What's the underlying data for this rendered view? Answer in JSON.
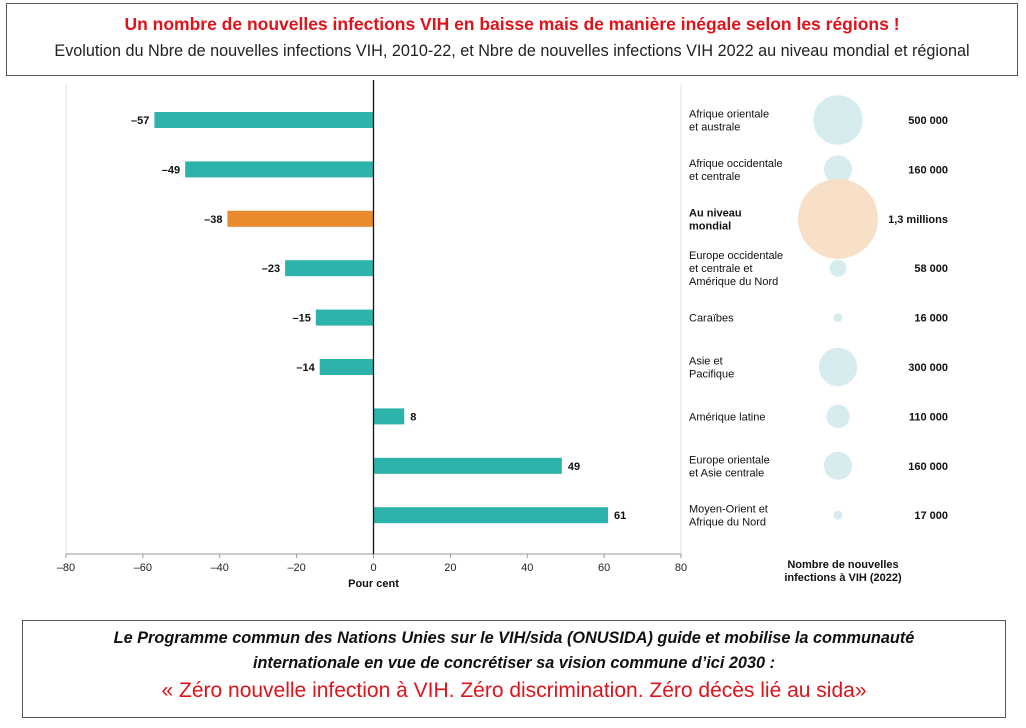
{
  "header": {
    "title": "Un nombre de nouvelles infections VIH en baisse mais de manière inégale selon les régions !",
    "subtitle": "Evolution du Nbre de nouvelles infections VIH, 2010-22, et Nbre de nouvelles infections VIH 2022 au niveau mondial et régional"
  },
  "footer": {
    "line1": "Le Programme commun des Nations Unies sur le VIH/sida (ONUSIDA) guide et mobilise la communauté",
    "line2": "internationale en vue de concrétiser sa vision commune d’ici 2030 :",
    "quote": "« Zéro nouvelle infection à VIH. Zéro discrimination. Zéro décès lié au sida»"
  },
  "colors": {
    "teal": "#2db3ab",
    "orange": "#e98a2c",
    "bubble_teal": "#d6ecee",
    "bubble_orange": "#f7dfc8",
    "accent_red": "#e0131a"
  },
  "chart_data": [
    {
      "type": "bar",
      "orientation": "horizontal",
      "categories": [
        "Afrique orientale et australe",
        "Afrique occidentale et centrale",
        "Au niveau mondial",
        "Europe occidentale et centrale et Amérique du Nord",
        "Caraïbes",
        "Asie et Pacifique",
        "Amérique latine",
        "Europe orientale et Asie centrale",
        "Moyen-Orient et Afrique du Nord"
      ],
      "values": [
        -57,
        -49,
        -38,
        -23,
        -15,
        -14,
        8,
        49,
        61
      ],
      "value_labels": [
        "–57",
        "–49",
        "–38",
        "–23",
        "–15",
        "–14",
        "8",
        "49",
        "61"
      ],
      "highlight_index": 2,
      "xlabel": "Pour cent",
      "xlim": [
        -80,
        80
      ],
      "xticks": [
        -80,
        -60,
        -40,
        -20,
        0,
        20,
        40,
        60,
        80
      ],
      "xtick_labels": [
        "–80",
        "–60",
        "–40",
        "–20",
        "0",
        "20",
        "40",
        "60",
        "80"
      ],
      "grid": false
    },
    {
      "type": "bubble",
      "title": "Nombre de nouvelles infections à VIH (2022)",
      "title_lines": [
        "Nombre de nouvelles",
        "infections à VIH (2022)"
      ],
      "rows": [
        {
          "label_lines": [
            "Afrique orientale",
            "et australe"
          ],
          "value": 500000,
          "value_label": "500 000",
          "highlight": false
        },
        {
          "label_lines": [
            "Afrique occidentale",
            "et centrale"
          ],
          "value": 160000,
          "value_label": "160 000",
          "highlight": false
        },
        {
          "label_lines": [
            "Au niveau",
            "mondial"
          ],
          "value": 1300000,
          "value_label": "1,3 millions",
          "highlight": true
        },
        {
          "label_lines": [
            "Europe occidentale",
            "et centrale et",
            "Amérique du Nord"
          ],
          "value": 58000,
          "value_label": "58 000",
          "highlight": false
        },
        {
          "label_lines": [
            "Caraïbes"
          ],
          "value": 16000,
          "value_label": "16 000",
          "highlight": false
        },
        {
          "label_lines": [
            "Asie et",
            "Pacifique"
          ],
          "value": 300000,
          "value_label": "300 000",
          "highlight": false
        },
        {
          "label_lines": [
            "Amérique latine"
          ],
          "value": 110000,
          "value_label": "110 000",
          "highlight": false
        },
        {
          "label_lines": [
            "Europe orientale",
            "et Asie centrale"
          ],
          "value": 160000,
          "value_label": "160 000",
          "highlight": false
        },
        {
          "label_lines": [
            "Moyen-Orient et",
            "Afrique du Nord"
          ],
          "value": 17000,
          "value_label": "17 000",
          "highlight": false
        }
      ]
    }
  ]
}
